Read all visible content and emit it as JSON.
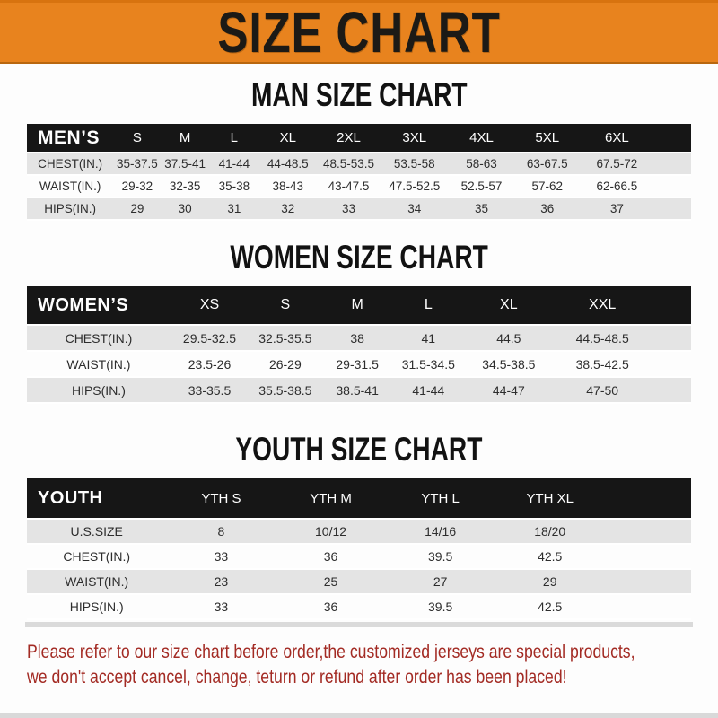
{
  "banner": {
    "title": "SIZE CHART",
    "bg_color": "#E8831E",
    "text_color": "#1c1a16"
  },
  "sections": [
    {
      "key": "men",
      "heading": "MAN SIZE CHART",
      "table": {
        "label": "MEN’S",
        "columns": [
          "S",
          "M",
          "L",
          "XL",
          "2XL",
          "3XL",
          "4XL",
          "5XL",
          "6XL"
        ],
        "rows": [
          {
            "label": "CHEST(IN.)",
            "values": [
              "35-37.5",
              "37.5-41",
              "41-44",
              "44-48.5",
              "48.5-53.5",
              "53.5-58",
              "58-63",
              "63-67.5",
              "67.5-72"
            ]
          },
          {
            "label": "WAIST(IN.)",
            "values": [
              "29-32",
              "32-35",
              "35-38",
              "38-43",
              "43-47.5",
              "47.5-52.5",
              "52.5-57",
              "57-62",
              "62-66.5"
            ]
          },
          {
            "label": "HIPS(IN.)",
            "values": [
              "29",
              "30",
              "31",
              "32",
              "33",
              "34",
              "35",
              "36",
              "37"
            ]
          }
        ]
      }
    },
    {
      "key": "women",
      "heading": "WOMEN SIZE CHART",
      "table": {
        "label": "WOMEN’S",
        "columns": [
          "XS",
          "S",
          "M",
          "L",
          "XL",
          "XXL"
        ],
        "rows": [
          {
            "label": "CHEST(IN.)",
            "values": [
              "29.5-32.5",
              "32.5-35.5",
              "38",
              "41",
              "44.5",
              "44.5-48.5"
            ]
          },
          {
            "label": "WAIST(IN.)",
            "values": [
              "23.5-26",
              "26-29",
              "29-31.5",
              "31.5-34.5",
              "34.5-38.5",
              "38.5-42.5"
            ]
          },
          {
            "label": "HIPS(IN.)",
            "values": [
              "33-35.5",
              "35.5-38.5",
              "38.5-41",
              "41-44",
              "44-47",
              "47-50"
            ]
          }
        ]
      }
    },
    {
      "key": "youth",
      "heading": "YOUTH SIZE CHART",
      "table": {
        "label": "YOUTH",
        "columns": [
          "YTH S",
          "YTH M",
          "YTH L",
          "YTH XL"
        ],
        "rows": [
          {
            "label": "U.S.SIZE",
            "values": [
              "8",
              "10/12",
              "14/16",
              "18/20"
            ]
          },
          {
            "label": "CHEST(IN.)",
            "values": [
              "33",
              "36",
              "39.5",
              "42.5"
            ]
          },
          {
            "label": "WAIST(IN.)",
            "values": [
              "23",
              "25",
              "27",
              "29"
            ]
          },
          {
            "label": "HIPS(IN.)",
            "values": [
              "33",
              "36",
              "39.5",
              "42.5"
            ]
          }
        ]
      }
    }
  ],
  "footer": {
    "text_color": "#A32B24",
    "lines": [
      "Please refer to our size chart before order,the customized jerseys are special products,",
      "we don't accept cancel, change, teturn or refund after order has been placed!"
    ]
  }
}
